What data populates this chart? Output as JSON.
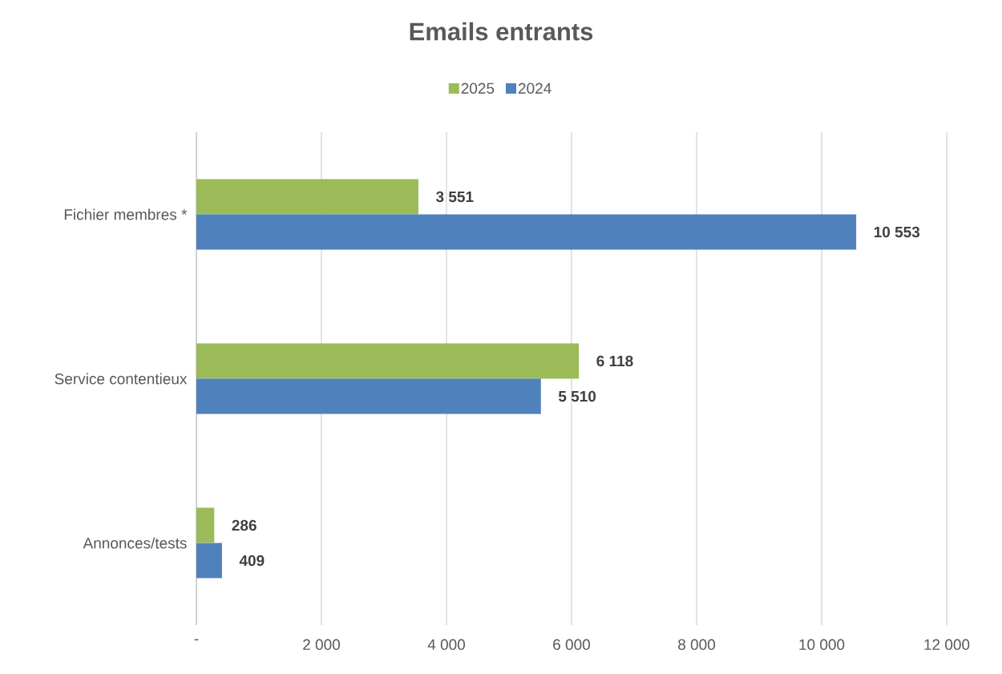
{
  "chart_data": {
    "type": "bar",
    "orientation": "horizontal",
    "title": "Emails entrants",
    "categories": [
      "Fichier membres *",
      "Service contentieux",
      "Annonces/tests"
    ],
    "series": [
      {
        "name": "2025",
        "color": "#9bbb59",
        "values": [
          3551,
          6118,
          286
        ],
        "value_labels": [
          "3 551",
          "6 118",
          "286"
        ]
      },
      {
        "name": "2024",
        "color": "#4f81bd",
        "values": [
          10553,
          5510,
          409
        ],
        "value_labels": [
          "10 553",
          "5 510",
          "409"
        ]
      }
    ],
    "xlim": [
      0,
      12000
    ],
    "xticks": [
      {
        "value": 0,
        "label": "-"
      },
      {
        "value": 2000,
        "label": "2 000"
      },
      {
        "value": 4000,
        "label": "4 000"
      },
      {
        "value": 6000,
        "label": "6 000"
      },
      {
        "value": 8000,
        "label": "8 000"
      },
      {
        "value": 10000,
        "label": "10 000"
      },
      {
        "value": 12000,
        "label": "12 000"
      }
    ],
    "grid": "x",
    "legend": "top"
  }
}
